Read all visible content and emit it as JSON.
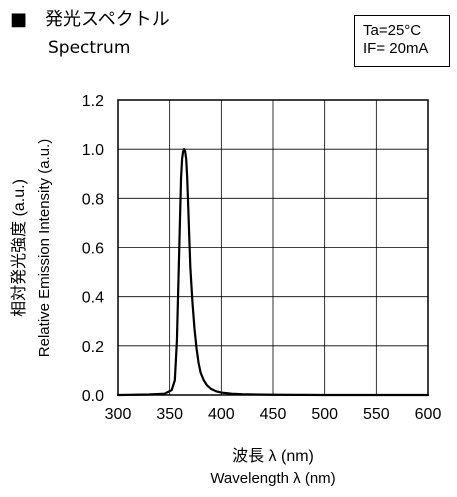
{
  "header": {
    "title_ja": "■　発光スペクトル",
    "title_en": "Spectrum",
    "condition_ta": "Ta=25°C",
    "condition_if": "IF= 20mA"
  },
  "chart_data": {
    "type": "line",
    "title": "発光スペクトル",
    "subtitle": "Spectrum",
    "xlabel": "波長 λ (nm)",
    "xlabel_en": "Wavelength λ (nm)",
    "ylabel": "相対発光強度 (a.u.)",
    "ylabel_en": "Relative Emission Intensity (a.u.)",
    "xlim": [
      300,
      600
    ],
    "ylim": [
      0,
      1.2
    ],
    "xticks": [
      300,
      350,
      400,
      450,
      500,
      550,
      600
    ],
    "xtick_labels": [
      "300",
      "350",
      "400",
      "450",
      "500",
      "550",
      "600"
    ],
    "yticks": [
      0,
      0.2,
      0.4,
      0.6,
      0.8,
      1.0,
      1.2
    ],
    "ytick_labels": [
      "0.0",
      "0.2",
      "0.4",
      "0.6",
      "0.8",
      "1.0",
      "1.2"
    ],
    "grid": true,
    "series": [
      {
        "x": [
          300,
          330,
          345,
          352,
          355,
          357,
          359,
          361,
          362,
          363,
          364,
          365,
          366,
          367,
          368,
          369,
          370,
          372,
          374,
          376,
          378,
          380,
          383,
          386,
          390,
          395,
          400,
          410,
          420,
          450,
          500,
          550,
          600
        ],
        "y": [
          0.0,
          0.002,
          0.005,
          0.02,
          0.06,
          0.22,
          0.55,
          0.88,
          0.96,
          0.99,
          1.0,
          0.99,
          0.96,
          0.88,
          0.76,
          0.64,
          0.52,
          0.38,
          0.27,
          0.19,
          0.13,
          0.09,
          0.06,
          0.04,
          0.025,
          0.015,
          0.01,
          0.005,
          0.003,
          0.001,
          0.0,
          0.0,
          0.0
        ]
      }
    ]
  },
  "colors": {
    "line": "#000000",
    "grid": "#000000",
    "background": "#ffffff"
  }
}
